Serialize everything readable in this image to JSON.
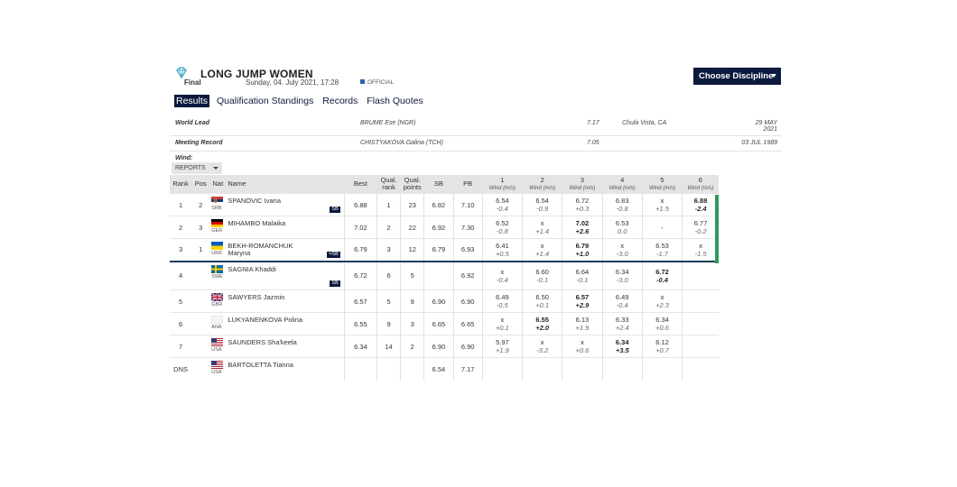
{
  "header": {
    "title": "LONG JUMP WOMEN",
    "phase": "Final",
    "date": "Sunday, 04. July 2021, 17:28",
    "status": "OFFICIAL",
    "choose_label": "Choose Discipline"
  },
  "tabs": [
    "Results",
    "Qualification Standings",
    "Records",
    "Flash Quotes"
  ],
  "records": [
    {
      "label": "World Lead",
      "who": "BRUME Ese (NGR)",
      "mark": "7.17",
      "venue": "Chula Vista, CA",
      "date": "29 MAY\n2021"
    },
    {
      "label": "Meeting Record",
      "who": "CHISTYAKOVA Galina (TCH)",
      "mark": "7.05",
      "venue": "",
      "date": "03 JUL 1989"
    },
    {
      "label": "Wind:",
      "who": "",
      "mark": "",
      "venue": "",
      "date": ""
    }
  ],
  "reports_label": "REPORTS",
  "columns": {
    "rank": "Rank",
    "pos": "Pos",
    "nat": "Nat",
    "name": "Name",
    "best": "Best",
    "qual_rank": "Qual. rank",
    "qual_points": "Qual. points",
    "sb": "SB",
    "pb": "PB",
    "attempts": [
      "1",
      "2",
      "3",
      "4",
      "5",
      "6"
    ],
    "wind": "Wind (m/s)"
  },
  "colors": {
    "accent": "#0d1a3e",
    "green": "#2d9a5a"
  },
  "athletes": [
    {
      "rank": "1",
      "pos": "2",
      "nat": "SRB",
      "flag": "SRB",
      "name": "SPANOVIC Ivana",
      "badge": "SB",
      "best": "6.88",
      "qrank": "1",
      "qpts": "23",
      "sb": "6.82",
      "pb": "7.10",
      "att": [
        [
          "6.54",
          "-0.4"
        ],
        [
          "6.54",
          "-0.9"
        ],
        [
          "6.72",
          "+0.3"
        ],
        [
          "6.83",
          "-0.8"
        ],
        [
          "x",
          "+1.5"
        ],
        [
          "6.88",
          "-2.4"
        ]
      ],
      "bestIdx": 5
    },
    {
      "rank": "2",
      "pos": "3",
      "nat": "GER",
      "flag": "GER",
      "name": "MIHAMBO Malaika",
      "badge": "",
      "best": "7.02",
      "qrank": "2",
      "qpts": "22",
      "sb": "6.92",
      "pb": "7.30",
      "att": [
        [
          "6.52",
          "-0.8"
        ],
        [
          "x",
          "+1.4"
        ],
        [
          "7.02",
          "+2.6"
        ],
        [
          "6.53",
          "0.0"
        ],
        [
          "-",
          ""
        ],
        [
          "6.77",
          "-0.2"
        ]
      ],
      "bestIdx": 2
    },
    {
      "rank": "3",
      "pos": "1",
      "nat": "UKR",
      "flag": "UKR",
      "name": "BEKH-ROMANCHUK Maryna",
      "badge": "=SB",
      "best": "6.79",
      "qrank": "3",
      "qpts": "12",
      "sb": "6.79",
      "pb": "6.93",
      "att": [
        [
          "6.41",
          "+0.5"
        ],
        [
          "x",
          "+1.4"
        ],
        [
          "6.79",
          "+1.0"
        ],
        [
          "x",
          "-3.0"
        ],
        [
          "6.53",
          "-1.7"
        ],
        [
          "x",
          "-1.5"
        ]
      ],
      "bestIdx": 2
    },
    {
      "rank": "4",
      "pos": "",
      "nat": "SWE",
      "flag": "SWE",
      "name": "SAGNIA Khaddi",
      "badge": "SB",
      "best": "6.72",
      "qrank": "6",
      "qpts": "5",
      "sb": "",
      "pb": "6.92",
      "att": [
        [
          "x",
          "-0.4"
        ],
        [
          "6.60",
          "-0.1"
        ],
        [
          "6.64",
          "-0.1"
        ],
        [
          "6.34",
          "-3.0"
        ],
        [
          "6.72",
          "-0.4"
        ],
        [
          "",
          ""
        ]
      ],
      "bestIdx": 4
    },
    {
      "rank": "5",
      "pos": "",
      "nat": "GBR",
      "flag": "GBR",
      "name": "SAWYERS Jazmin",
      "badge": "",
      "best": "6.57",
      "qrank": "5",
      "qpts": "9",
      "sb": "6.90",
      "pb": "6.90",
      "att": [
        [
          "6.49",
          "-0.5"
        ],
        [
          "6.50",
          "+0.1"
        ],
        [
          "6.57",
          "+2.9"
        ],
        [
          "6.49",
          "-0.4"
        ],
        [
          "x",
          "+2.3"
        ],
        [
          "",
          ""
        ]
      ],
      "bestIdx": 2
    },
    {
      "rank": "6",
      "pos": "",
      "nat": "ANA",
      "flag": "ANA",
      "name": "LUKYANENKOVA Polina",
      "badge": "",
      "best": "6.55",
      "qrank": "9",
      "qpts": "3",
      "sb": "6.65",
      "pb": "6.65",
      "att": [
        [
          "x",
          "+0.1"
        ],
        [
          "6.55",
          "+2.0"
        ],
        [
          "6.13",
          "+1.9"
        ],
        [
          "6.33",
          "+2.4"
        ],
        [
          "6.34",
          "+0.6"
        ],
        [
          "",
          ""
        ]
      ],
      "bestIdx": 1
    },
    {
      "rank": "7",
      "pos": "",
      "nat": "USA",
      "flag": "USA",
      "name": "SAUNDERS Sha'keela",
      "badge": "",
      "best": "6.34",
      "qrank": "14",
      "qpts": "2",
      "sb": "6.90",
      "pb": "6.90",
      "att": [
        [
          "5.97",
          "+1.9"
        ],
        [
          "x",
          "-3.2"
        ],
        [
          "x",
          "+0.6"
        ],
        [
          "6.34",
          "+3.5"
        ],
        [
          "6.12",
          "+0.7"
        ],
        [
          "",
          ""
        ]
      ],
      "bestIdx": 3
    },
    {
      "rank": "DNS",
      "pos": "",
      "nat": "USA",
      "flag": "USA",
      "name": "BARTOLETTA Tianna",
      "badge": "",
      "best": "",
      "qrank": "",
      "qpts": "",
      "sb": "6.54",
      "pb": "7.17",
      "att": [
        [
          "",
          ""
        ],
        [
          "",
          ""
        ],
        [
          "",
          ""
        ],
        [
          "",
          ""
        ],
        [
          "",
          ""
        ],
        [
          "",
          ""
        ]
      ],
      "bestIdx": -1
    }
  ]
}
